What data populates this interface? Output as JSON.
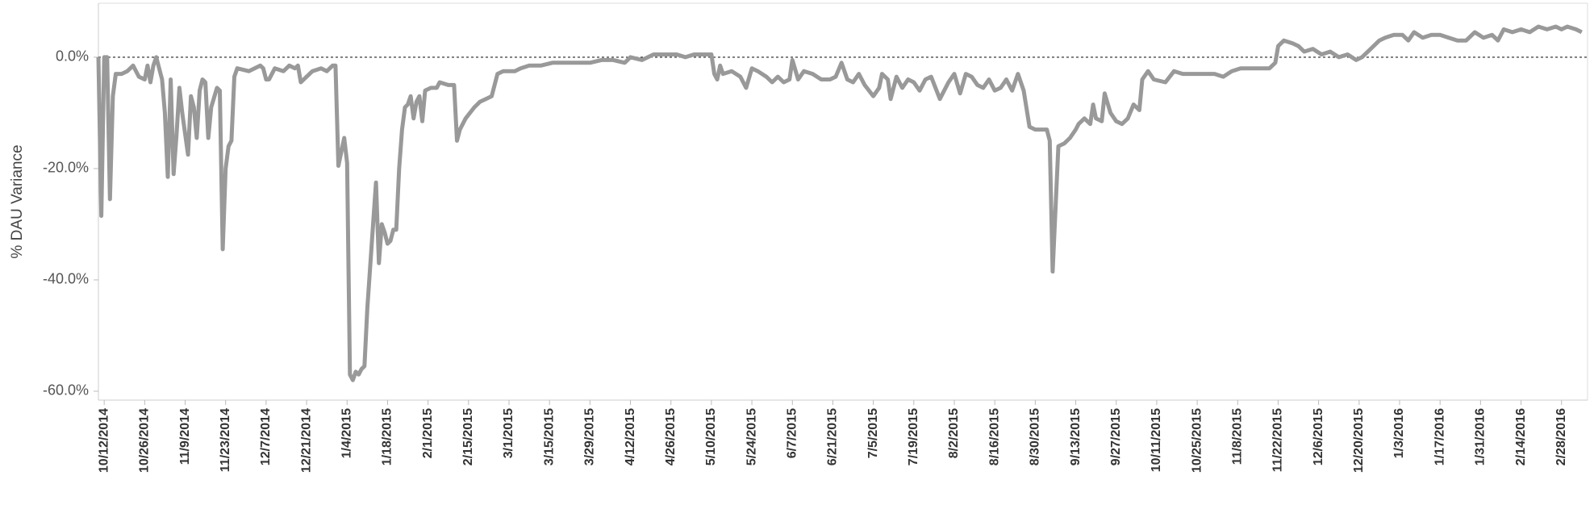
{
  "chart_data": {
    "type": "line",
    "y_axis_label": "% DAU Variance",
    "xlim": [
      "10/10/2014",
      "3/8/2016"
    ],
    "ylim": [
      -61.6,
      9.7
    ],
    "yticks": [
      {
        "value": -60,
        "label": "-60.0%"
      },
      {
        "value": -40,
        "label": "-40.0%"
      },
      {
        "value": -20,
        "label": "-20.0%"
      },
      {
        "value": 0,
        "label": "0.0%"
      }
    ],
    "xticks": [
      "10/12/2014",
      "10/26/2014",
      "11/9/2014",
      "11/23/2014",
      "12/7/2014",
      "12/21/2014",
      "1/4/2015",
      "1/18/2015",
      "2/1/2015",
      "2/15/2015",
      "3/1/2015",
      "3/15/2015",
      "3/29/2015",
      "4/12/2015",
      "4/26/2015",
      "5/10/2015",
      "5/24/2015",
      "6/7/2015",
      "6/21/2015",
      "7/5/2015",
      "7/19/2015",
      "8/2/2015",
      "8/16/2015",
      "8/30/2015",
      "9/13/2015",
      "9/27/2015",
      "10/11/2015",
      "10/25/2015",
      "11/8/2015",
      "11/22/2015",
      "12/6/2015",
      "12/20/2015",
      "1/3/2016",
      "1/17/2016",
      "1/31/2016",
      "2/14/2016",
      "2/28/2016"
    ],
    "zero_line": true,
    "color": "#999999",
    "x": [
      "10/10/2014",
      "10/11/2014",
      "10/12/2014",
      "10/13/2014",
      "10/14/2014",
      "10/15/2014",
      "10/16/2014",
      "10/18/2014",
      "10/20/2014",
      "10/22/2014",
      "10/24/2014",
      "10/26/2014",
      "10/27/2014",
      "10/28/2014",
      "10/29/2014",
      "10/30/2014",
      "11/1/2014",
      "11/2/2014",
      "11/3/2014",
      "11/4/2014",
      "11/5/2014",
      "11/6/2014",
      "11/7/2014",
      "11/8/2014",
      "11/10/2014",
      "11/11/2014",
      "11/12/2014",
      "11/13/2014",
      "11/14/2014",
      "11/15/2014",
      "11/16/2014",
      "11/17/2014",
      "11/18/2014",
      "11/20/2014",
      "11/21/2014",
      "11/22/2014",
      "11/23/2014",
      "11/24/2014",
      "11/25/2014",
      "11/26/2014",
      "11/27/2014",
      "12/1/2014",
      "12/3/2014",
      "12/5/2014",
      "12/6/2014",
      "12/7/2014",
      "12/8/2014",
      "12/10/2014",
      "12/13/2014",
      "12/15/2014",
      "12/17/2014",
      "12/18/2014",
      "12/19/2014",
      "12/21/2014",
      "12/23/2014",
      "12/26/2014",
      "12/28/2014",
      "12/30/2014",
      "12/31/2014",
      "1/1/2015",
      "1/2/2015",
      "1/3/2015",
      "1/4/2015",
      "1/5/2015",
      "1/6/2015",
      "1/7/2015",
      "1/8/2015",
      "1/9/2015",
      "1/10/2015",
      "1/11/2015",
      "1/13/2015",
      "1/14/2015",
      "1/15/2015",
      "1/16/2015",
      "1/17/2015",
      "1/18/2015",
      "1/19/2015",
      "1/20/2015",
      "1/21/2015",
      "1/22/2015",
      "1/23/2015",
      "1/24/2015",
      "1/25/2015",
      "1/26/2015",
      "1/27/2015",
      "1/28/2015",
      "1/29/2015",
      "1/30/2015",
      "1/31/2015",
      "2/2/2015",
      "2/4/2015",
      "2/5/2015",
      "2/8/2015",
      "2/10/2015",
      "2/11/2015",
      "2/12/2015",
      "2/14/2015",
      "2/17/2015",
      "2/19/2015",
      "2/21/2015",
      "2/23/2015",
      "2/25/2015",
      "2/27/2015",
      "3/1/2015",
      "3/3/2015",
      "3/5/2015",
      "3/8/2015",
      "3/12/2015",
      "3/16/2015",
      "3/20/2015",
      "3/25/2015",
      "3/29/2015",
      "4/2/2015",
      "4/6/2015",
      "4/10/2015",
      "4/12/2015",
      "4/16/2015",
      "4/20/2015",
      "4/24/2015",
      "4/28/2015",
      "5/1/2015",
      "5/4/2015",
      "5/7/2015",
      "5/10/2015",
      "5/11/2015",
      "5/12/2015",
      "5/13/2015",
      "5/14/2015",
      "5/17/2015",
      "5/20/2015",
      "5/22/2015",
      "5/24/2015",
      "5/26/2015",
      "5/29/2015",
      "5/31/2015",
      "6/2/2015",
      "6/4/2015",
      "6/6/2015",
      "6/7/2015",
      "6/9/2015",
      "6/11/2015",
      "6/14/2015",
      "6/17/2015",
      "6/20/2015",
      "6/22/2015",
      "6/24/2015",
      "6/26/2015",
      "6/28/2015",
      "6/30/2015",
      "7/2/2015",
      "7/5/2015",
      "7/7/2015",
      "7/8/2015",
      "7/10/2015",
      "7/11/2015",
      "7/13/2015",
      "7/15/2015",
      "7/17/2015",
      "7/19/2015",
      "7/21/2015",
      "7/23/2015",
      "7/25/2015",
      "7/28/2015",
      "7/31/2015",
      "8/2/2015",
      "8/4/2015",
      "8/6/2015",
      "8/8/2015",
      "8/10/2015",
      "8/12/2015",
      "8/14/2015",
      "8/16/2015",
      "8/18/2015",
      "8/20/2015",
      "8/22/2015",
      "8/24/2015",
      "8/26/2015",
      "8/28/2015",
      "8/30/2015",
      "9/3/2015",
      "9/4/2015",
      "9/5/2015",
      "9/7/2015",
      "9/9/2015",
      "9/11/2015",
      "9/13/2015",
      "9/14/2015",
      "9/16/2015",
      "9/18/2015",
      "9/19/2015",
      "9/20/2015",
      "9/22/2015",
      "9/23/2015",
      "9/25/2015",
      "9/27/2015",
      "9/29/2015",
      "10/1/2015",
      "10/3/2015",
      "10/5/2015",
      "10/6/2015",
      "10/8/2015",
      "10/10/2015",
      "10/14/2015",
      "10/17/2015",
      "10/20/2015",
      "10/24/2015",
      "10/28/2015",
      "10/31/2015",
      "11/3/2015",
      "11/6/2015",
      "11/9/2015",
      "11/12/2015",
      "11/16/2015",
      "11/19/2015",
      "11/21/2015",
      "11/22/2015",
      "11/24/2015",
      "11/27/2015",
      "11/29/2015",
      "12/1/2015",
      "12/4/2015",
      "12/7/2015",
      "12/10/2015",
      "12/13/2015",
      "12/16/2015",
      "12/19/2015",
      "12/21/2015",
      "12/24/2015",
      "12/27/2015",
      "12/29/2015",
      "1/1/2016",
      "1/4/2016",
      "1/6/2016",
      "1/8/2016",
      "1/11/2016",
      "1/14/2016",
      "1/17/2016",
      "1/20/2016",
      "1/23/2016",
      "1/26/2016",
      "1/29/2016",
      "2/1/2016",
      "2/4/2016",
      "2/6/2016",
      "2/8/2016",
      "2/11/2016",
      "2/14/2016",
      "2/17/2016",
      "2/20/2016",
      "2/23/2016",
      "2/26/2016",
      "2/28/2016",
      "3/1/2016",
      "3/4/2016",
      "3/6/2016"
    ],
    "values": [
      0,
      -28.5,
      0,
      0,
      -25.5,
      -7,
      -3,
      -3,
      -2.5,
      -1.5,
      -3.5,
      -4,
      -1.5,
      -4.5,
      -1.5,
      0,
      -4,
      -10,
      -21.5,
      -4,
      -21,
      -14,
      -5.5,
      -10,
      -17.5,
      -7,
      -9,
      -14.5,
      -6,
      -4,
      -4.5,
      -14.5,
      -9,
      -5.5,
      -6,
      -34.5,
      -20,
      -16,
      -15,
      -3.5,
      -2,
      -2.5,
      -2,
      -1.5,
      -2,
      -4,
      -4,
      -2,
      -2.5,
      -1.5,
      -2,
      -1.5,
      -4.5,
      -3.5,
      -2.5,
      -2,
      -2.5,
      -1.5,
      -1.5,
      -19.5,
      -17,
      -14.5,
      -19,
      -57,
      -58,
      -56.5,
      -57,
      -56,
      -55.5,
      -45,
      -30,
      -22.5,
      -37,
      -30,
      -31.5,
      -33.5,
      -33,
      -31,
      -31,
      -20,
      -13,
      -9,
      -8.5,
      -7,
      -11,
      -8,
      -7,
      -11.5,
      -6,
      -5.5,
      -5.5,
      -4.5,
      -5,
      -5,
      -15,
      -13,
      -11,
      -9,
      -8,
      -7.5,
      -7,
      -3,
      -2.5,
      -2.5,
      -2.5,
      -2,
      -1.5,
      -1.5,
      -1,
      -1,
      -1,
      -1,
      -0.5,
      -0.5,
      -1,
      0,
      -0.5,
      0.5,
      0.5,
      0.5,
      0,
      0.5,
      0.5,
      0.5,
      -3,
      -4,
      -1.5,
      -3,
      -2.5,
      -3.5,
      -5.5,
      -2,
      -2.5,
      -3.5,
      -4.5,
      -3.5,
      -4.5,
      -4,
      -0.5,
      -4,
      -2.5,
      -3,
      -4,
      -4,
      -3.5,
      -1,
      -4,
      -4.5,
      -3,
      -5,
      -7,
      -5.5,
      -3,
      -4,
      -7.5,
      -3.5,
      -5.5,
      -4,
      -4.5,
      -6,
      -4,
      -3.5,
      -7.5,
      -4.5,
      -3,
      -6.5,
      -3,
      -3.5,
      -5,
      -5.5,
      -4,
      -6,
      -5.5,
      -4,
      -6,
      -3,
      -6,
      -12.5,
      -13,
      -13,
      -15,
      -38.5,
      -16,
      -15.5,
      -14.5,
      -13,
      -12,
      -11,
      -12,
      -8.5,
      -11,
      -11.5,
      -6.5,
      -10,
      -11.5,
      -12,
      -11,
      -8.5,
      -9.5,
      -4,
      -2.5,
      -4,
      -4.5,
      -2.5,
      -3,
      -3,
      -3,
      -3,
      -3.5,
      -2.5,
      -2,
      -2,
      -2,
      -2,
      -1,
      2,
      3,
      2.5,
      2,
      1,
      1.5,
      0.5,
      1,
      0,
      0.5,
      -0.5,
      0,
      1.5,
      3,
      3.5,
      4,
      4,
      3,
      4.5,
      3.5,
      4,
      4,
      3.5,
      3,
      3,
      4.5,
      3.5,
      4,
      3,
      5,
      4.5,
      5,
      4.5,
      5.5,
      5,
      5.5,
      5,
      5.5,
      5,
      4.5
    ]
  }
}
